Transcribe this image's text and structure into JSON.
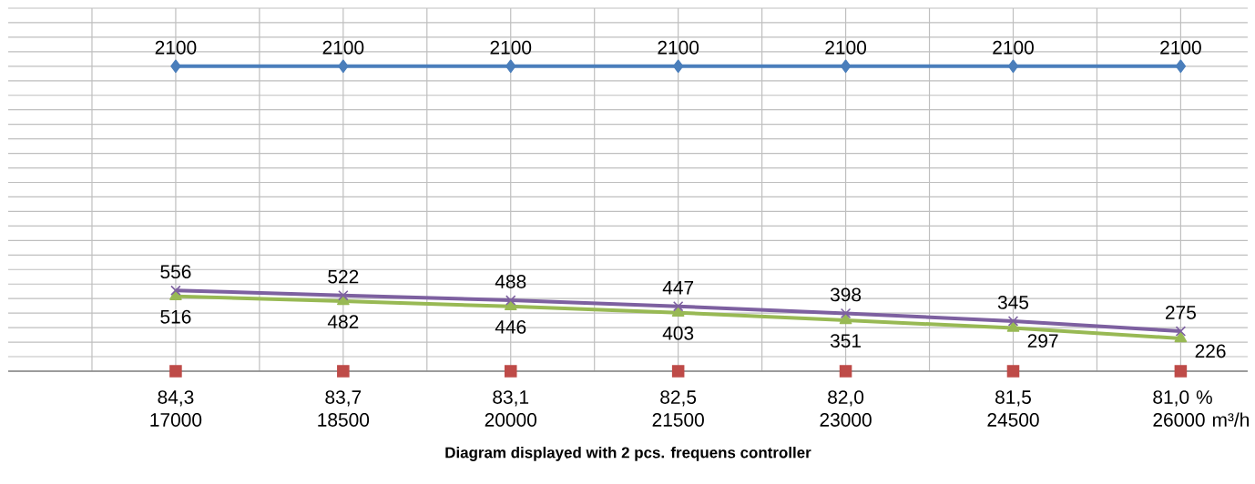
{
  "chart_data": {
    "type": "line",
    "xlabel": "Diagram displayed with 2 pcs. frequens controller",
    "categories": [
      "84,3 17000",
      "83,7 18500",
      "83,1 20000",
      "82,5 21500",
      "82,0 23000",
      "81,5 24500",
      "81,0 % 26000 m³/h"
    ],
    "ylim": [
      0,
      2500
    ],
    "yticks": [
      {
        "value": 0,
        "label": null
      },
      {
        "value": 100,
        "label": null
      },
      {
        "value": 200,
        "label": null
      },
      {
        "value": 300,
        "label": null
      },
      {
        "value": 400,
        "label": null
      },
      {
        "value": 500,
        "label": null
      },
      {
        "value": 600,
        "label": null
      },
      {
        "value": 700,
        "label": null
      },
      {
        "value": 800,
        "label": null
      },
      {
        "value": 900,
        "label": null
      },
      {
        "value": 1000,
        "label": null
      },
      {
        "value": 1100,
        "label": null
      },
      {
        "value": 1200,
        "label": null
      },
      {
        "value": 1300,
        "label": null
      },
      {
        "value": 1400,
        "label": null
      },
      {
        "value": 1500,
        "label": null
      },
      {
        "value": 1600,
        "label": null
      },
      {
        "value": 1700,
        "label": null
      },
      {
        "value": 1800,
        "label": null
      },
      {
        "value": 1900,
        "label": null
      },
      {
        "value": 2000,
        "label": null
      },
      {
        "value": 2100,
        "label": null
      },
      {
        "value": 2200,
        "label": null
      },
      {
        "value": 2300,
        "label": null
      },
      {
        "value": 2400,
        "label": null
      },
      {
        "value": 2500,
        "label": null
      }
    ],
    "grid": true,
    "tick_labels": "x",
    "series": [
      {
        "color": "#4a7ebb",
        "marker": "diamond",
        "values": [
          2100,
          2100,
          2100,
          2100,
          2100,
          2100,
          2100
        ],
        "value_labels": [
          "2100",
          "2100",
          "2100",
          "2100",
          "2100",
          "2100",
          "2100"
        ]
      },
      {
        "type": "scatter",
        "color": "#be4b48",
        "marker": "square",
        "values": [
          0,
          0,
          0,
          0,
          0,
          0,
          0
        ]
      },
      {
        "color": "#98b954",
        "marker": "triangle",
        "values": [
          516,
          482,
          446,
          403,
          351,
          297,
          226
        ],
        "value_labels": [
          "516",
          "482",
          "446",
          "403",
          "351",
          "297",
          "226"
        ]
      },
      {
        "color": "#7d60a0",
        "marker": "cross",
        "values": [
          556,
          522,
          488,
          447,
          398,
          345,
          275
        ],
        "value_labels": [
          "556",
          "522",
          "488",
          "447",
          "398",
          "345",
          "275"
        ]
      }
    ]
  }
}
